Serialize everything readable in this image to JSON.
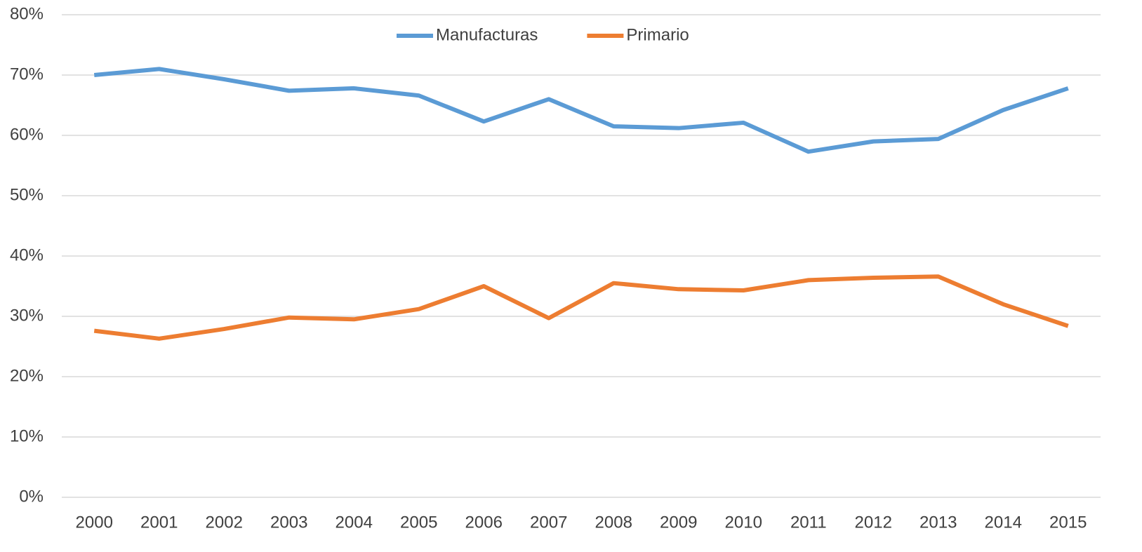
{
  "chart_data": {
    "type": "line",
    "categories": [
      "2000",
      "2001",
      "2002",
      "2003",
      "2004",
      "2005",
      "2006",
      "2007",
      "2008",
      "2009",
      "2010",
      "2011",
      "2012",
      "2013",
      "2014",
      "2015"
    ],
    "series": [
      {
        "name": "Manufacturas",
        "color": "#5b9bd5",
        "values": [
          70.0,
          71.0,
          69.3,
          67.4,
          67.8,
          66.6,
          62.3,
          66.0,
          61.5,
          61.2,
          62.1,
          57.3,
          59.0,
          59.4,
          64.2,
          67.8
        ]
      },
      {
        "name": "Primario",
        "color": "#ed7d31",
        "values": [
          27.6,
          26.3,
          27.9,
          29.8,
          29.5,
          31.2,
          35.0,
          29.7,
          35.5,
          34.5,
          34.3,
          36.0,
          36.4,
          36.6,
          32.0,
          28.4
        ]
      }
    ],
    "ylim": [
      0,
      80
    ],
    "yticks": [
      {
        "value": 0,
        "label": "0%"
      },
      {
        "value": 10,
        "label": "10%"
      },
      {
        "value": 20,
        "label": "20%"
      },
      {
        "value": 30,
        "label": "30%"
      },
      {
        "value": 40,
        "label": "40%"
      },
      {
        "value": 50,
        "label": "50%"
      },
      {
        "value": 60,
        "label": "60%"
      },
      {
        "value": 70,
        "label": "70%"
      },
      {
        "value": 80,
        "label": "80%"
      }
    ],
    "grid": true,
    "legend": "top"
  }
}
